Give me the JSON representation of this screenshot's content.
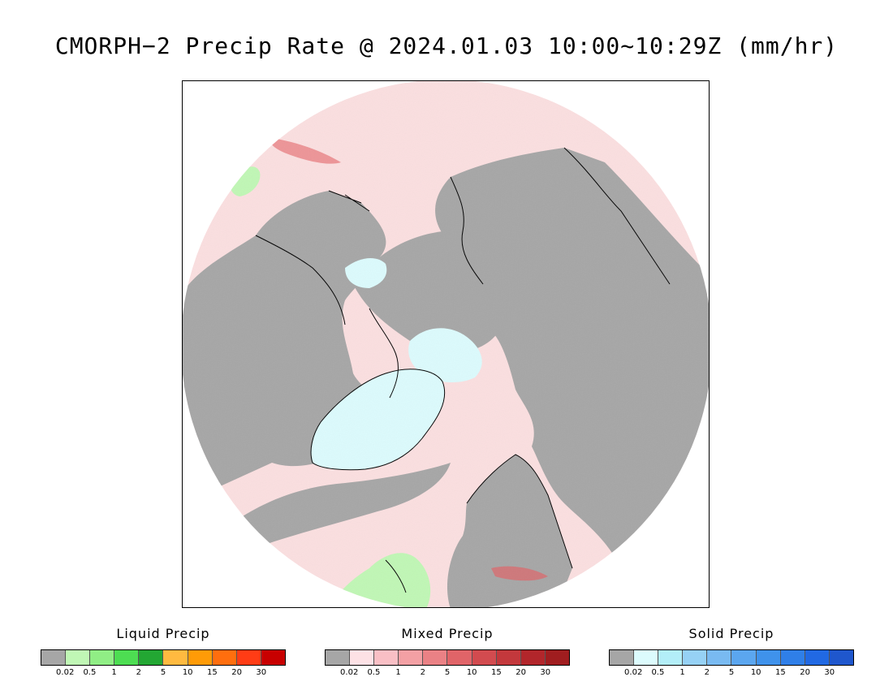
{
  "title": "CMORPH−2 Precip Rate @ 2024.01.03 10:00~10:29Z (mm/hr)",
  "map": {
    "projection": "north polar stereographic",
    "ocean_color": "#fbdfe0",
    "land_color": "#a6a6a6",
    "snow_color": "#dcfbfd",
    "light_rain_color": "#c0f7b5",
    "coastline_color": "#000000"
  },
  "legends": [
    {
      "title": "Liquid Precip",
      "colors": [
        "#a6a6a6",
        "#c0f7b5",
        "#90ee85",
        "#4ddd52",
        "#23a733",
        "#ffba40",
        "#ff9b07",
        "#ff6e0e",
        "#ff3c15",
        "#c80000"
      ],
      "ticks": [
        "0.02",
        "0.5",
        "1",
        "2",
        "5",
        "10",
        "15",
        "20",
        "30"
      ]
    },
    {
      "title": "Mixed Precip",
      "colors": [
        "#a6a6a6",
        "#fde1e5",
        "#f9bfc5",
        "#f3a0a4",
        "#ea8185",
        "#e06468",
        "#d24b4f",
        "#c3383c",
        "#b2262b",
        "#a01d1f"
      ],
      "ticks": [
        "0.02",
        "0.5",
        "1",
        "2",
        "5",
        "10",
        "15",
        "20",
        "30"
      ]
    },
    {
      "title": "Solid Precip",
      "colors": [
        "#a6a6a6",
        "#dcfbfd",
        "#b3eef8",
        "#96d1f5",
        "#79baf1",
        "#5ba6ef",
        "#3f92eb",
        "#2f7fe8",
        "#2169e3",
        "#1f57cd"
      ],
      "ticks": [
        "0.02",
        "0.5",
        "1",
        "2",
        "5",
        "10",
        "15",
        "20",
        "30"
      ]
    }
  ]
}
